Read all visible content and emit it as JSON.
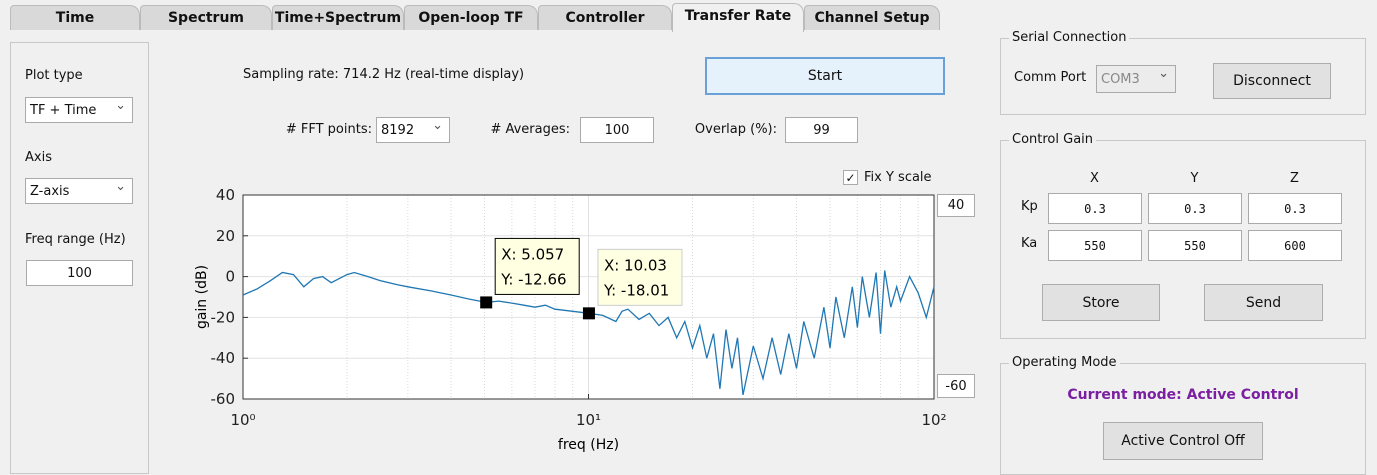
{
  "tabs": [
    "Time",
    "Spectrum",
    "Time+Spectrum",
    "Open-loop TF",
    "Controller",
    "Transfer Rate",
    "Channel Setup"
  ],
  "active_tab": 5,
  "left_panel": {
    "plot_type_label": "Plot type",
    "plot_type": "TF + Time",
    "axis_label": "Axis",
    "axis": "Z-axis",
    "freq_range_label": "Freq range (Hz)",
    "freq_range": "100"
  },
  "acquisition": {
    "sampling_rate": "Sampling rate: 714.2 Hz (real-time display)",
    "start_button": "Start",
    "fft_points_label": "# FFT points:",
    "fft_points": "8192",
    "averages_label": "# Averages:",
    "averages": "100",
    "overlap_label": "Overlap (%):",
    "overlap": "99",
    "fix_y_label": "Fix Y scale",
    "fix_y": true,
    "y_max_box": "40",
    "y_min_box": "-60"
  },
  "chart_data": {
    "type": "line",
    "x_label": "freq (Hz)",
    "y_label": "gain (dB)",
    "log_x": true,
    "grid": true,
    "xlim": [
      1,
      100
    ],
    "xticks": [
      {
        "value": 1,
        "label": "10⁰"
      },
      {
        "value": 10,
        "label": "10¹"
      },
      {
        "value": 100,
        "label": "10²"
      }
    ],
    "ylim": [
      -60,
      40
    ],
    "yticks": [
      40,
      20,
      0,
      -20,
      -40,
      -60
    ],
    "x": [
      1,
      1.1,
      1.2,
      1.3,
      1.4,
      1.5,
      1.6,
      1.7,
      1.8,
      2,
      2.1,
      2.3,
      2.5,
      2.8,
      3,
      3.5,
      4,
      4.5,
      5.057,
      5.5,
      6,
      6.5,
      7,
      7.5,
      8,
      9,
      10.03,
      11,
      12,
      12.5,
      13,
      14,
      15,
      16,
      17,
      18,
      19,
      20,
      21,
      22,
      23,
      24,
      25,
      26,
      27,
      28,
      30,
      32,
      34,
      36,
      38,
      40,
      42,
      45,
      48,
      50,
      52,
      55,
      58,
      60,
      62,
      65,
      68,
      70,
      72,
      75,
      78,
      80,
      85,
      90,
      95,
      100
    ],
    "series": [
      {
        "color": "#1f77b4",
        "values": [
          -9,
          -6,
          -2,
          2,
          1,
          -5,
          -1,
          0,
          -3,
          1,
          2,
          0,
          -2,
          -4,
          -5,
          -7,
          -9,
          -11,
          -12.66,
          -12,
          -13,
          -14,
          -15,
          -14,
          -16,
          -17,
          -18.01,
          -19,
          -22,
          -17,
          -16,
          -21,
          -18,
          -24,
          -20,
          -30,
          -22,
          -35,
          -24,
          -40,
          -28,
          -55,
          -26,
          -45,
          -30,
          -58,
          -34,
          -50,
          -30,
          -48,
          -28,
          -45,
          -22,
          -40,
          -15,
          -35,
          -10,
          -30,
          -5,
          -25,
          0,
          -20,
          2,
          -28,
          3,
          -15,
          -5,
          -12,
          0,
          -8,
          -20,
          -5
        ]
      }
    ],
    "datatips": [
      {
        "x": 5.057,
        "y": -12.66,
        "x_label": "X: 5.057",
        "y_label": "Y: -12.66"
      },
      {
        "x": 10.03,
        "y": -18.01,
        "x_label": "X: 10.03",
        "y_label": "Y: -18.01"
      }
    ]
  },
  "serial": {
    "title": "Serial Connection",
    "port_label": "Comm Port",
    "port": "COM3",
    "button": "Disconnect"
  },
  "control_gain": {
    "title": "Control Gain",
    "columns": [
      "X",
      "Y",
      "Z"
    ],
    "rows": [
      {
        "label": "Kp",
        "values": [
          "0.3",
          "0.3",
          "0.3"
        ]
      },
      {
        "label": "Ka",
        "values": [
          "550",
          "550",
          "600"
        ]
      }
    ],
    "store_button": "Store",
    "send_button": "Send"
  },
  "operating_mode": {
    "title": "Operating Mode",
    "current_mode": "Current mode: Active Control",
    "button": "Active Control Off"
  }
}
